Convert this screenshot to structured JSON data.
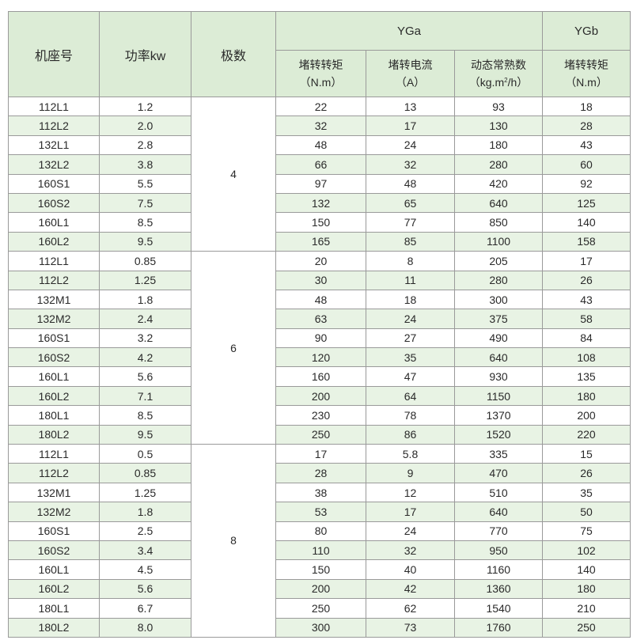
{
  "header": {
    "col_model": "机座号",
    "col_power": "功率kw",
    "col_poles": "极数",
    "group_yga": "YGa",
    "group_ygb": "YGb",
    "yga_torque": "堵转转矩",
    "yga_torque_unit": "（N.m）",
    "yga_current": "堵转电流",
    "yga_current_unit": "（A）",
    "yga_inertia": "动态常熟数",
    "yga_inertia_unit_a": "（kg.m",
    "yga_inertia_unit_sup": "2",
    "yga_inertia_unit_b": "/h）",
    "ygb_torque": "堵转转矩",
    "ygb_torque_unit": "（N.m）"
  },
  "groups": [
    {
      "poles": "4",
      "rows": [
        [
          "112L1",
          "1.2",
          "22",
          "13",
          "93",
          "18"
        ],
        [
          "112L2",
          "2.0",
          "32",
          "17",
          "130",
          "28"
        ],
        [
          "132L1",
          "2.8",
          "48",
          "24",
          "180",
          "43"
        ],
        [
          "132L2",
          "3.8",
          "66",
          "32",
          "280",
          "60"
        ],
        [
          "160S1",
          "5.5",
          "97",
          "48",
          "420",
          "92"
        ],
        [
          "160S2",
          "7.5",
          "132",
          "65",
          "640",
          "125"
        ],
        [
          "160L1",
          "8.5",
          "150",
          "77",
          "850",
          "140"
        ],
        [
          "160L2",
          "9.5",
          "165",
          "85",
          "1100",
          "158"
        ]
      ]
    },
    {
      "poles": "6",
      "rows": [
        [
          "112L1",
          "0.85",
          "20",
          "8",
          "205",
          "17"
        ],
        [
          "112L2",
          "1.25",
          "30",
          "11",
          "280",
          "26"
        ],
        [
          "132M1",
          "1.8",
          "48",
          "18",
          "300",
          "43"
        ],
        [
          "132M2",
          "2.4",
          "63",
          "24",
          "375",
          "58"
        ],
        [
          "160S1",
          "3.2",
          "90",
          "27",
          "490",
          "84"
        ],
        [
          "160S2",
          "4.2",
          "120",
          "35",
          "640",
          "108"
        ],
        [
          "160L1",
          "5.6",
          "160",
          "47",
          "930",
          "135"
        ],
        [
          "160L2",
          "7.1",
          "200",
          "64",
          "1150",
          "180"
        ],
        [
          "180L1",
          "8.5",
          "230",
          "78",
          "1370",
          "200"
        ],
        [
          "180L2",
          "9.5",
          "250",
          "86",
          "1520",
          "220"
        ]
      ]
    },
    {
      "poles": "8",
      "rows": [
        [
          "112L1",
          "0.5",
          "17",
          "5.8",
          "335",
          "15"
        ],
        [
          "112L2",
          "0.85",
          "28",
          "9",
          "470",
          "26"
        ],
        [
          "132M1",
          "1.25",
          "38",
          "12",
          "510",
          "35"
        ],
        [
          "132M2",
          "1.8",
          "53",
          "17",
          "640",
          "50"
        ],
        [
          "160S1",
          "2.5",
          "80",
          "24",
          "770",
          "75"
        ],
        [
          "160S2",
          "3.4",
          "110",
          "32",
          "950",
          "102"
        ],
        [
          "160L1",
          "4.5",
          "150",
          "40",
          "1160",
          "140"
        ],
        [
          "160L2",
          "5.6",
          "200",
          "42",
          "1360",
          "180"
        ],
        [
          "180L1",
          "6.7",
          "250",
          "62",
          "1540",
          "210"
        ],
        [
          "180L2",
          "8.0",
          "300",
          "73",
          "1760",
          "250"
        ]
      ]
    }
  ]
}
